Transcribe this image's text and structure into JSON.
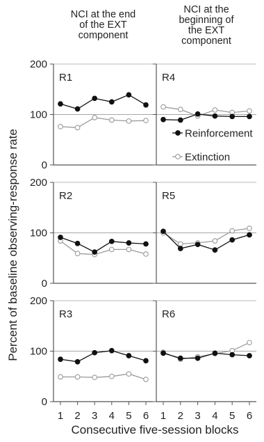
{
  "chart_data": {
    "type": "line",
    "column_titles": [
      [
        "NCI at the end",
        "of the EXT",
        "component"
      ],
      [
        "NCI at the",
        "beginning of",
        "the EXT",
        "component"
      ]
    ],
    "ylabel": "Percent of baseline observing-response rate",
    "xlabel": "Consecutive five-session blocks",
    "x": [
      1,
      2,
      3,
      4,
      5,
      6
    ],
    "ylim": [
      0,
      200
    ],
    "yticks": [
      0,
      100,
      200
    ],
    "reference_line": 100,
    "legend": {
      "placement": "inside panel R4, lower right",
      "entries": [
        {
          "label": "Reinforcement",
          "marker": "filled-circle"
        },
        {
          "label": "Extinction",
          "marker": "open-circle"
        }
      ]
    },
    "colors": {
      "reinforcement": "#111111",
      "extinction": "#9a9a9a",
      "axes": "#555555"
    },
    "panels": [
      {
        "label": "R1",
        "series": [
          {
            "name": "Reinforcement",
            "values": [
              121,
              111,
              132,
              125,
              139,
              119
            ]
          },
          {
            "name": "Extinction",
            "values": [
              76,
              74,
              94,
              89,
              87,
              88
            ]
          }
        ]
      },
      {
        "label": "R4",
        "series": [
          {
            "name": "Reinforcement",
            "values": [
              90,
              89,
              101,
              97,
              96,
              96
            ]
          },
          {
            "name": "Extinction",
            "values": [
              115,
              110,
              97,
              109,
              104,
              107
            ]
          }
        ]
      },
      {
        "label": "R2",
        "series": [
          {
            "name": "Reinforcement",
            "values": [
              91,
              79,
              62,
              83,
              80,
              78
            ]
          },
          {
            "name": "Extinction",
            "values": [
              84,
              59,
              57,
              67,
              67,
              58
            ]
          }
        ]
      },
      {
        "label": "R5",
        "series": [
          {
            "name": "Reinforcement",
            "values": [
              103,
              69,
              77,
              66,
              86,
              96
            ]
          },
          {
            "name": "Extinction",
            "values": [
              100,
              78,
              80,
              84,
              104,
              109
            ]
          }
        ]
      },
      {
        "label": "R3",
        "series": [
          {
            "name": "Reinforcement",
            "values": [
              84,
              79,
              97,
              101,
              91,
              81
            ]
          },
          {
            "name": "Extinction",
            "values": [
              49,
              49,
              48,
              50,
              55,
              44
            ]
          }
        ]
      },
      {
        "label": "R6",
        "series": [
          {
            "name": "Reinforcement",
            "values": [
              96,
              86,
              86,
              96,
              93,
              91
            ]
          },
          {
            "name": "Extinction",
            "values": [
              98,
              84,
              89,
              95,
              101,
              117
            ]
          }
        ]
      }
    ]
  }
}
